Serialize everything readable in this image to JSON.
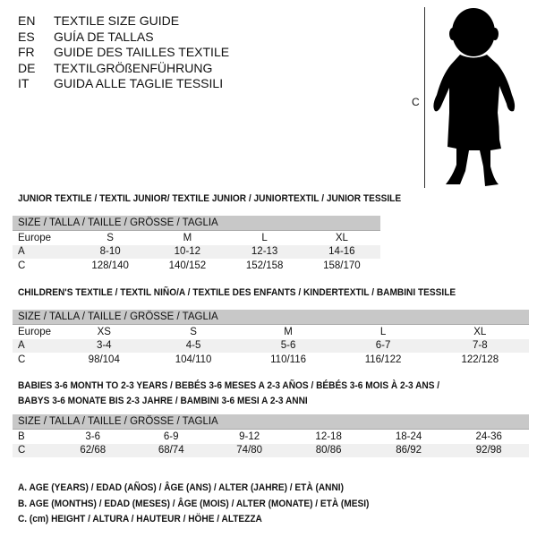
{
  "languages": [
    {
      "code": "EN",
      "text": "TEXTILE SIZE GUIDE"
    },
    {
      "code": "ES",
      "text": "GUÍA DE TALLAS"
    },
    {
      "code": "FR",
      "text": "GUIDE DES TAILLES TEXTILE"
    },
    {
      "code": "DE",
      "text": "TEXTILGRÖßENFÜHRUNG"
    },
    {
      "code": "IT",
      "text": "GUIDA ALLE TAGLIE TESSILI"
    }
  ],
  "figure": {
    "measure_label": "C",
    "icon": "child-silhouette"
  },
  "junior": {
    "title": "JUNIOR TEXTILE / TEXTIL JUNIOR/ TEXTILE JUNIOR / JUNIORTEXTIL / JUNIOR TESSILE",
    "header": "SIZE / TALLA / TAILLE / GRÖSSE / TAGLIA",
    "rows": [
      [
        "Europe",
        "S",
        "M",
        "L",
        "XL"
      ],
      [
        "A",
        "8-10",
        "10-12",
        "12-13",
        "14-16"
      ],
      [
        "C",
        "128/140",
        "140/152",
        "152/158",
        "158/170"
      ]
    ]
  },
  "children": {
    "title": "CHILDREN'S TEXTILE / TEXTIL NIÑO/A / TEXTILE DES ENFANTS / KINDERTEXTIL / BAMBINI TESSILE",
    "header": "SIZE / TALLA / TAILLE / GRÖSSE / TAGLIA",
    "rows": [
      [
        "Europe",
        "XS",
        "S",
        "M",
        "L",
        "XL"
      ],
      [
        "A",
        "3-4",
        "4-5",
        "5-6",
        "6-7",
        "7-8"
      ],
      [
        "C",
        "98/104",
        "104/110",
        "110/116",
        "116/122",
        "122/128"
      ]
    ]
  },
  "babies": {
    "title_line1": "BABIES 3-6 MONTH TO 2-3 YEARS / BEBÉS 3-6 MESES A 2-3 AÑOS / BÉBÉS 3-6 MOIS À 2-3 ANS /",
    "title_line2": "BABYS 3-6 MONATE BIS 2-3 JAHRE / BAMBINI 3-6 MESI A 2-3 ANNI",
    "header": "SIZE / TALLA / TAILLE / GRÖSSE / TAGLIA",
    "rows": [
      [
        "B",
        "3-6",
        "6-9",
        "9-12",
        "12-18",
        "18-24",
        "24-36"
      ],
      [
        "C",
        "62/68",
        "68/74",
        "74/80",
        "80/86",
        "86/92",
        "92/98"
      ]
    ]
  },
  "legend": [
    "A. AGE (YEARS) / EDAD (AÑOS) / ÂGE (ANS) / ALTER (JAHRE) / ETÀ (ANNI)",
    "B. AGE (MONTHS) / EDAD (MESES) / ÂGE (MOIS) / ALTER (MONATE) / ETÀ (MESI)",
    "C. (cm) HEIGHT / ALTURA / HAUTEUR / HÖHE / ALTEZZA"
  ]
}
